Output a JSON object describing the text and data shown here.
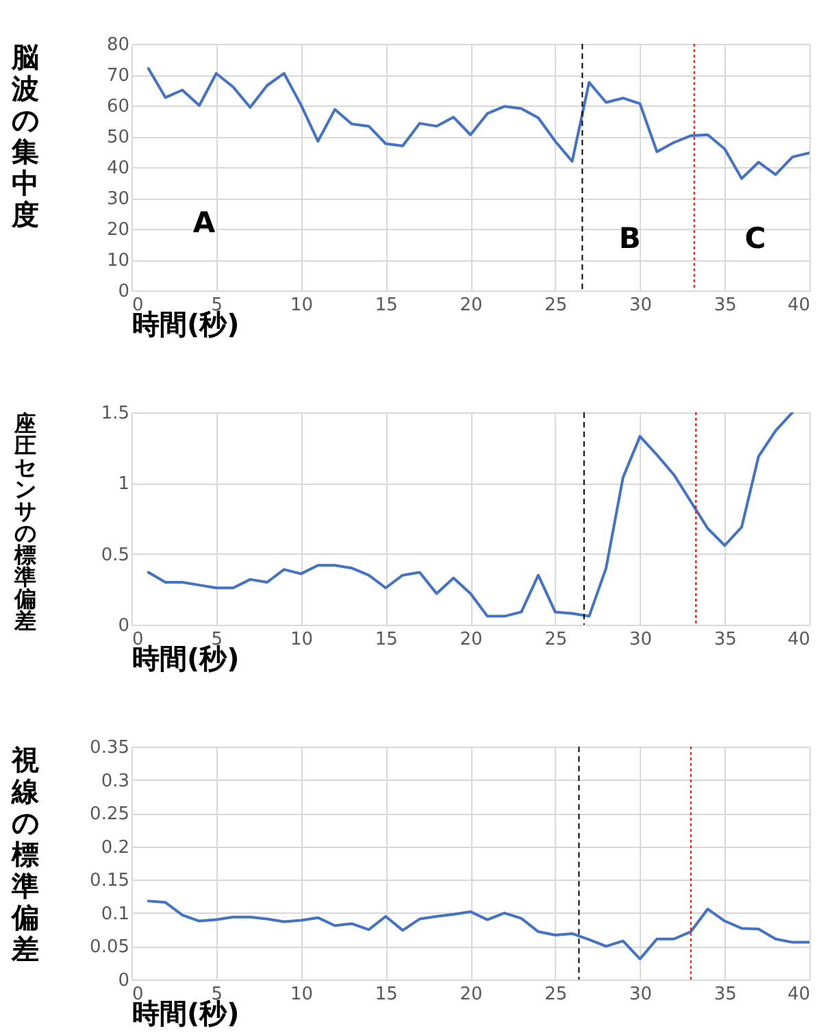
{
  "chart_data": [
    {
      "type": "line",
      "ylabel": "脳波の集中度",
      "xlabel": "時間(秒)",
      "x": [
        1,
        2,
        3,
        4,
        5,
        6,
        7,
        8,
        9,
        10,
        11,
        12,
        13,
        14,
        15,
        16,
        17,
        18,
        19,
        20,
        21,
        22,
        23,
        24,
        25,
        26,
        27,
        28,
        29,
        30,
        31,
        32,
        33,
        34,
        35,
        36,
        37,
        38,
        39,
        40
      ],
      "series": [
        {
          "color": "#4472c4",
          "values": [
            72,
            62.6,
            65,
            60,
            70.4,
            66,
            59.4,
            66.5,
            70.4,
            60.2,
            48.4,
            58.7,
            54,
            53.3,
            47.6,
            46.9,
            54.2,
            53.3,
            56.2,
            50.5,
            57.4,
            59.7,
            59,
            56,
            48.4,
            41.9,
            67.5,
            61,
            62.4,
            60.6,
            45,
            48,
            50.2,
            50.5,
            45.9,
            36.3,
            41.6,
            37.6,
            43.3,
            44.6
          ]
        }
      ],
      "xlim": [
        0,
        40
      ],
      "xticks": [
        0,
        5,
        10,
        15,
        20,
        25,
        30,
        35,
        40
      ],
      "ylim": [
        0,
        80
      ],
      "yticks": [
        0,
        10,
        20,
        30,
        40,
        50,
        60,
        70,
        80
      ],
      "grid": true,
      "marker": "none",
      "line_style": "solid",
      "ref_lines": [
        {
          "axis": "x",
          "value": 26.6,
          "color": "#000000",
          "line_style": "dashed"
        },
        {
          "axis": "x",
          "value": 33.2,
          "color": "#ff0000",
          "line_style": "dotted"
        }
      ],
      "annotations": [
        "A",
        "B",
        "C"
      ]
    },
    {
      "type": "line",
      "ylabel": "座圧センサの標準偏差",
      "xlabel": "時間(秒)",
      "x": [
        1,
        2,
        3,
        4,
        5,
        6,
        7,
        8,
        9,
        10,
        11,
        12,
        13,
        14,
        15,
        16,
        17,
        18,
        19,
        20,
        21,
        22,
        23,
        24,
        25,
        26,
        27,
        28,
        29,
        30,
        31,
        32,
        33,
        34,
        35,
        36,
        37,
        38,
        39
      ],
      "series": [
        {
          "color": "#4472c4",
          "values": [
            0.37,
            0.3,
            0.3,
            0.28,
            0.26,
            0.26,
            0.32,
            0.3,
            0.39,
            0.36,
            0.42,
            0.42,
            0.4,
            0.35,
            0.26,
            0.35,
            0.37,
            0.22,
            0.33,
            0.22,
            0.06,
            0.06,
            0.09,
            0.35,
            0.09,
            0.08,
            0.06,
            0.4,
            1.04,
            1.33,
            1.2,
            1.06,
            0.87,
            0.68,
            0.56,
            0.69,
            1.19,
            1.37,
            1.5
          ]
        }
      ],
      "xlim": [
        0,
        40
      ],
      "xticks": [
        0,
        5,
        10,
        15,
        20,
        25,
        30,
        35,
        40
      ],
      "ylim": [
        0,
        1.5
      ],
      "yticks": [
        0,
        0.5,
        1,
        1.5
      ],
      "grid": true,
      "marker": "none",
      "line_style": "solid",
      "ref_lines": [
        {
          "axis": "x",
          "value": 26.7,
          "color": "#000000",
          "line_style": "dashed"
        },
        {
          "axis": "x",
          "value": 33.3,
          "color": "#ff0000",
          "line_style": "dotted"
        }
      ]
    },
    {
      "type": "line",
      "ylabel": "視線の標準偏差",
      "xlabel": "時間(秒)",
      "x": [
        1,
        2,
        3,
        4,
        5,
        6,
        7,
        8,
        9,
        10,
        11,
        12,
        13,
        14,
        15,
        16,
        17,
        18,
        19,
        20,
        21,
        22,
        23,
        24,
        25,
        26,
        27,
        28,
        29,
        30,
        31,
        32,
        33,
        34,
        35,
        36,
        37,
        38,
        39,
        40
      ],
      "series": [
        {
          "color": "#4472c4",
          "values": [
            0.118,
            0.116,
            0.097,
            0.088,
            0.09,
            0.094,
            0.094,
            0.091,
            0.087,
            0.089,
            0.093,
            0.081,
            0.084,
            0.075,
            0.095,
            0.074,
            0.091,
            0.095,
            0.098,
            0.102,
            0.09,
            0.1,
            0.092,
            0.072,
            0.067,
            0.069,
            0.06,
            0.05,
            0.058,
            0.031,
            0.061,
            0.061,
            0.072,
            0.106,
            0.088,
            0.077,
            0.076,
            0.061,
            0.056,
            0.056
          ]
        }
      ],
      "xlim": [
        0,
        40
      ],
      "xticks": [
        0,
        5,
        10,
        15,
        20,
        25,
        30,
        35,
        40
      ],
      "ylim": [
        0,
        0.35
      ],
      "yticks": [
        0,
        0.05,
        0.1,
        0.15,
        0.2,
        0.25,
        0.3,
        0.35
      ],
      "grid": true,
      "marker": "none",
      "line_style": "solid",
      "ref_lines": [
        {
          "axis": "x",
          "value": 26.4,
          "color": "#000000",
          "line_style": "dashed"
        },
        {
          "axis": "x",
          "value": 33.0,
          "color": "#ff0000",
          "line_style": "dotted"
        }
      ]
    }
  ]
}
